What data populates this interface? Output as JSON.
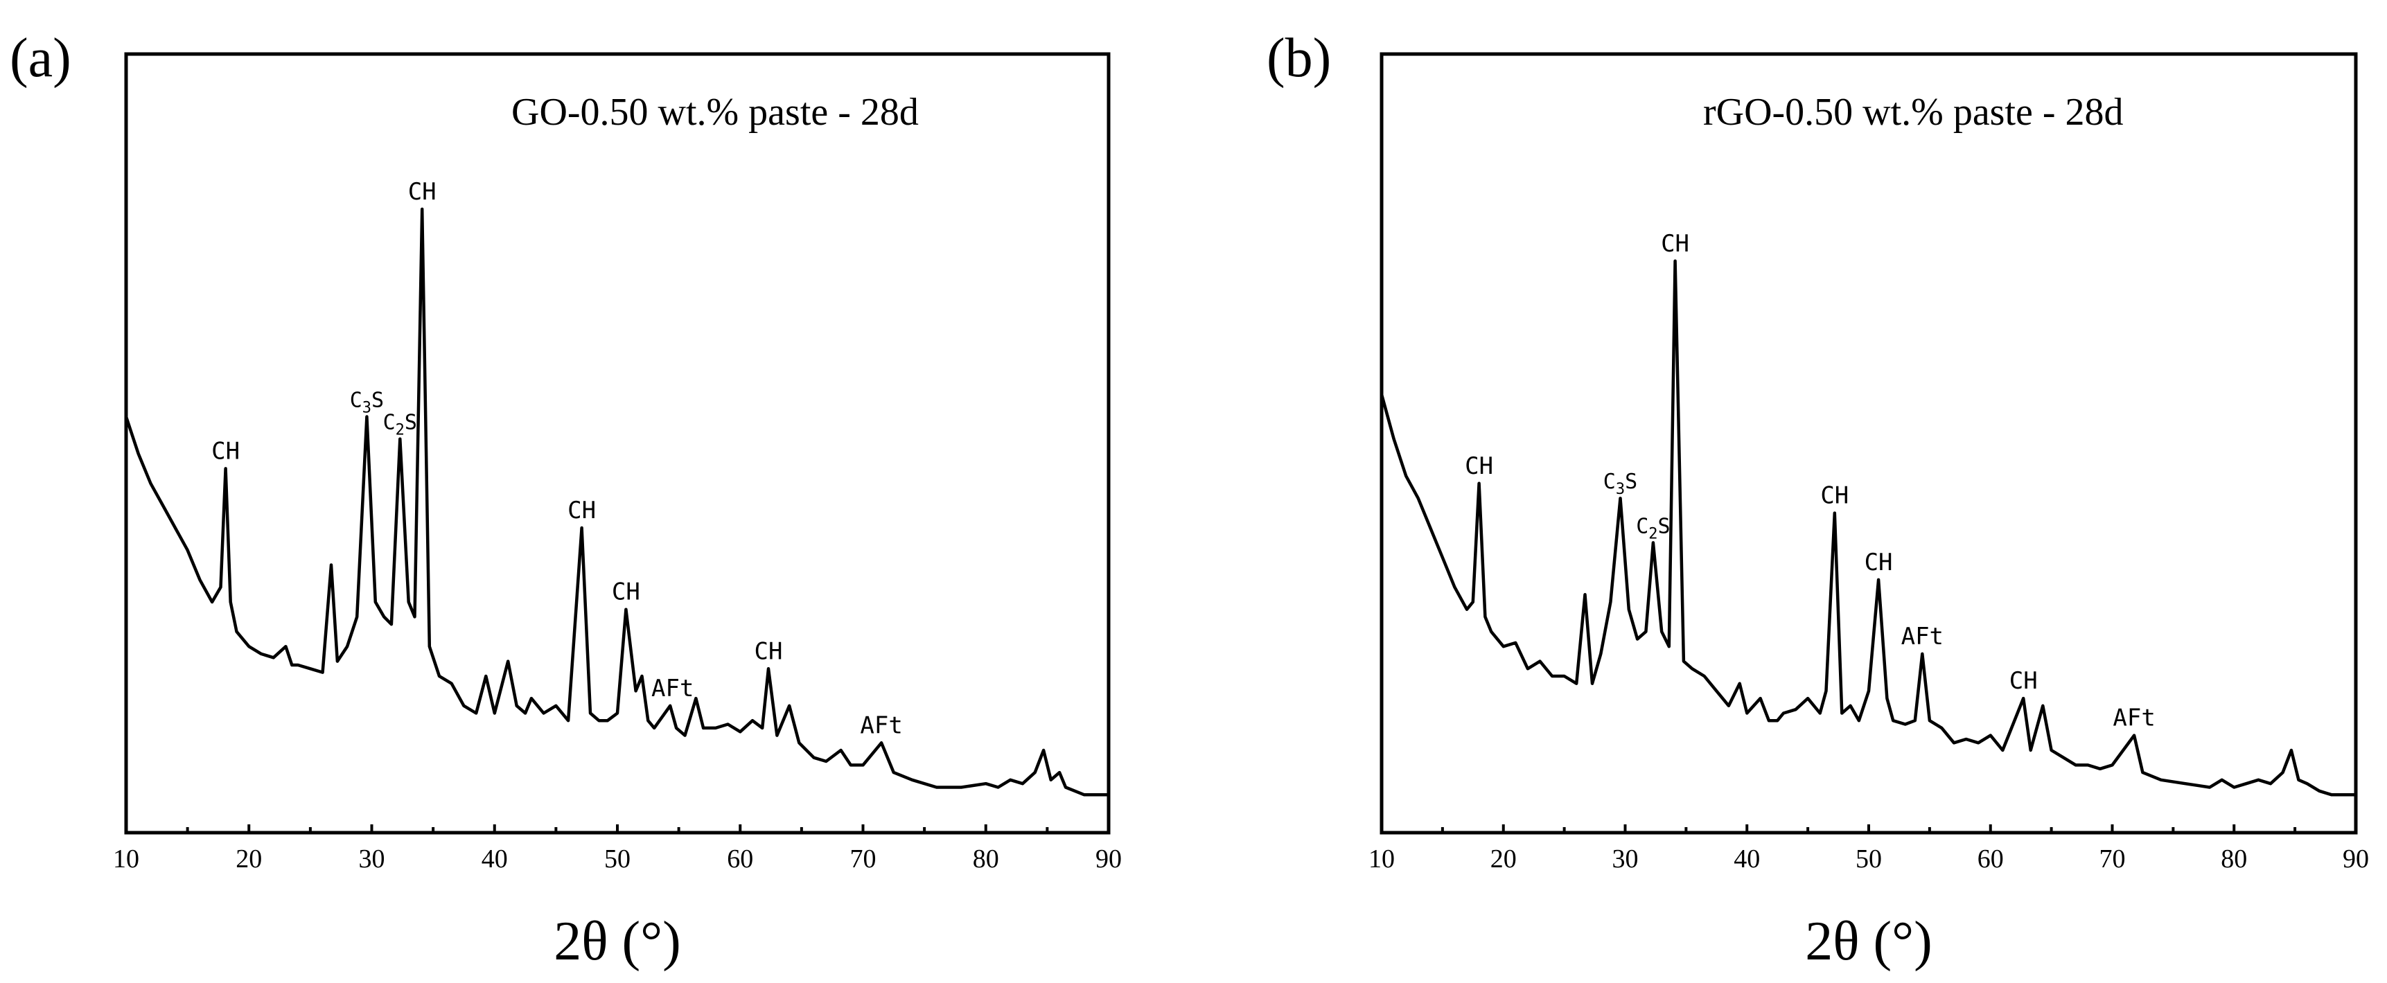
{
  "chart_data": [
    {
      "type": "line",
      "panel_label": "(a)",
      "title": "GO-0.50 wt.% paste - 28d",
      "xlabel": "2θ (°)",
      "ylabel": "",
      "xlim": [
        10,
        90
      ],
      "ylim": [
        0,
        100
      ],
      "xticks": [
        10,
        20,
        30,
        40,
        50,
        60,
        70,
        80,
        90
      ],
      "series": [
        {
          "name": "GO-0.50 wt.% paste - 28d",
          "points": [
            [
              10,
              55
            ],
            [
              11,
              50
            ],
            [
              12,
              46
            ],
            [
              13,
              43
            ],
            [
              14,
              40
            ],
            [
              15,
              37
            ],
            [
              16,
              33
            ],
            [
              17,
              30
            ],
            [
              17.7,
              32
            ],
            [
              18.1,
              48
            ],
            [
              18.5,
              30
            ],
            [
              19,
              26
            ],
            [
              20,
              24
            ],
            [
              21,
              23
            ],
            [
              22,
              22.5
            ],
            [
              23,
              24
            ],
            [
              23.5,
              21.5
            ],
            [
              24,
              21.5
            ],
            [
              25,
              21
            ],
            [
              26,
              20.5
            ],
            [
              26.7,
              35
            ],
            [
              27.2,
              22
            ],
            [
              28,
              24
            ],
            [
              28.8,
              28
            ],
            [
              29.6,
              55
            ],
            [
              30.3,
              30
            ],
            [
              31,
              28
            ],
            [
              31.6,
              27
            ],
            [
              32.3,
              52
            ],
            [
              33,
              30
            ],
            [
              33.5,
              28
            ],
            [
              34.1,
              83
            ],
            [
              34.7,
              24
            ],
            [
              35.5,
              20
            ],
            [
              36.5,
              19
            ],
            [
              37.5,
              16
            ],
            [
              38.5,
              15
            ],
            [
              39.3,
              20
            ],
            [
              40,
              15
            ],
            [
              41.1,
              22
            ],
            [
              41.8,
              16
            ],
            [
              42.5,
              15
            ],
            [
              43,
              17
            ],
            [
              44,
              15
            ],
            [
              45,
              16
            ],
            [
              46,
              14
            ],
            [
              47.1,
              40
            ],
            [
              47.8,
              15
            ],
            [
              48.5,
              14
            ],
            [
              49.2,
              14
            ],
            [
              50,
              15
            ],
            [
              50.7,
              29
            ],
            [
              51.5,
              18
            ],
            [
              52,
              20
            ],
            [
              52.5,
              14
            ],
            [
              53,
              13
            ],
            [
              54.3,
              16
            ],
            [
              54.8,
              13
            ],
            [
              55.5,
              12
            ],
            [
              56.4,
              17
            ],
            [
              57,
              13
            ],
            [
              58,
              13
            ],
            [
              59,
              13.5
            ],
            [
              60,
              12.5
            ],
            [
              61,
              14
            ],
            [
              61.8,
              13
            ],
            [
              62.3,
              21
            ],
            [
              63,
              12
            ],
            [
              64,
              16
            ],
            [
              64.8,
              11
            ],
            [
              66,
              9
            ],
            [
              67,
              8.5
            ],
            [
              68.2,
              10
            ],
            [
              69,
              8
            ],
            [
              70,
              8
            ],
            [
              71.5,
              11
            ],
            [
              72.5,
              7
            ],
            [
              74,
              6
            ],
            [
              76,
              5
            ],
            [
              78,
              5
            ],
            [
              80,
              5.5
            ],
            [
              81,
              5
            ],
            [
              82,
              6
            ],
            [
              83,
              5.5
            ],
            [
              84,
              7
            ],
            [
              84.7,
              10
            ],
            [
              85.3,
              6
            ],
            [
              86,
              7
            ],
            [
              86.5,
              5
            ],
            [
              88,
              4
            ],
            [
              90,
              4
            ]
          ]
        }
      ],
      "annotations": [
        {
          "text": "CH",
          "x": 18.1
        },
        {
          "text": "C3S",
          "x": 29.6,
          "base": "C",
          "sub": "3",
          "tail": "S"
        },
        {
          "text": "C2S",
          "x": 32.3,
          "base": "C",
          "sub": "2",
          "tail": "S"
        },
        {
          "text": "CH",
          "x": 34.1
        },
        {
          "text": "CH",
          "x": 47.1
        },
        {
          "text": "CH",
          "x": 50.7
        },
        {
          "text": "AFt",
          "x": 54.5
        },
        {
          "text": "CH",
          "x": 62.3
        },
        {
          "text": "AFt",
          "x": 71.5
        }
      ]
    },
    {
      "type": "line",
      "panel_label": "(b)",
      "title": "rGO-0.50 wt.% paste - 28d",
      "xlabel": "2θ (°)",
      "ylabel": "",
      "xlim": [
        10,
        90
      ],
      "ylim": [
        0,
        100
      ],
      "xticks": [
        10,
        20,
        30,
        40,
        50,
        60,
        70,
        80,
        90
      ],
      "series": [
        {
          "name": "rGO-0.50 wt.% paste - 28d",
          "points": [
            [
              10,
              58
            ],
            [
              11,
              52
            ],
            [
              12,
              47
            ],
            [
              13,
              44
            ],
            [
              14,
              40
            ],
            [
              15,
              36
            ],
            [
              16,
              32
            ],
            [
              17,
              29
            ],
            [
              17.5,
              30
            ],
            [
              18,
              46
            ],
            [
              18.5,
              28
            ],
            [
              19,
              26
            ],
            [
              20,
              24
            ],
            [
              21,
              24.5
            ],
            [
              22,
              21
            ],
            [
              23,
              22
            ],
            [
              24,
              20
            ],
            [
              25,
              20
            ],
            [
              26,
              19
            ],
            [
              26.7,
              31
            ],
            [
              27.3,
              19
            ],
            [
              28,
              23
            ],
            [
              28.8,
              30
            ],
            [
              29.6,
              44
            ],
            [
              30.3,
              29
            ],
            [
              31,
              25
            ],
            [
              31.7,
              26
            ],
            [
              32.3,
              38
            ],
            [
              33,
              26
            ],
            [
              33.6,
              24
            ],
            [
              34.1,
              76
            ],
            [
              34.8,
              22
            ],
            [
              35.5,
              21
            ],
            [
              36.5,
              20
            ],
            [
              37.5,
              18
            ],
            [
              38.5,
              16
            ],
            [
              39.4,
              19
            ],
            [
              40,
              15
            ],
            [
              41.1,
              17
            ],
            [
              41.8,
              14
            ],
            [
              42.5,
              14
            ],
            [
              43,
              15
            ],
            [
              44,
              15.5
            ],
            [
              45,
              17
            ],
            [
              46,
              15
            ],
            [
              46.5,
              18
            ],
            [
              47.2,
              42
            ],
            [
              47.8,
              15
            ],
            [
              48.5,
              16
            ],
            [
              49.2,
              14
            ],
            [
              50,
              18
            ],
            [
              50.8,
              33
            ],
            [
              51.5,
              17
            ],
            [
              52,
              14
            ],
            [
              53,
              13.5
            ],
            [
              53.8,
              14
            ],
            [
              54.4,
              23
            ],
            [
              55,
              14
            ],
            [
              56,
              13
            ],
            [
              57,
              11
            ],
            [
              58,
              11.5
            ],
            [
              59,
              11
            ],
            [
              60,
              12
            ],
            [
              61,
              10
            ],
            [
              62.7,
              17
            ],
            [
              63.3,
              10
            ],
            [
              64.3,
              16
            ],
            [
              65,
              10
            ],
            [
              66,
              9
            ],
            [
              67,
              8
            ],
            [
              68,
              8
            ],
            [
              69,
              7.5
            ],
            [
              70,
              8
            ],
            [
              71.8,
              12
            ],
            [
              72.5,
              7
            ],
            [
              74,
              6
            ],
            [
              76,
              5.5
            ],
            [
              78,
              5
            ],
            [
              79,
              6
            ],
            [
              80,
              5
            ],
            [
              81,
              5.5
            ],
            [
              82,
              6
            ],
            [
              83,
              5.5
            ],
            [
              84,
              7
            ],
            [
              84.7,
              10
            ],
            [
              85.3,
              6
            ],
            [
              86,
              5.5
            ],
            [
              87,
              4.5
            ],
            [
              88,
              4
            ],
            [
              90,
              4
            ]
          ]
        }
      ],
      "annotations": [
        {
          "text": "CH",
          "x": 18.0
        },
        {
          "text": "C3S",
          "x": 29.6,
          "base": "C",
          "sub": "3",
          "tail": "S"
        },
        {
          "text": "C2S",
          "x": 32.3,
          "base": "C",
          "sub": "2",
          "tail": "S"
        },
        {
          "text": "CH",
          "x": 34.1
        },
        {
          "text": "CH",
          "x": 47.2
        },
        {
          "text": "CH",
          "x": 50.8
        },
        {
          "text": "AFt",
          "x": 54.4
        },
        {
          "text": "CH",
          "x": 62.7
        },
        {
          "text": "AFt",
          "x": 71.8
        }
      ]
    }
  ]
}
